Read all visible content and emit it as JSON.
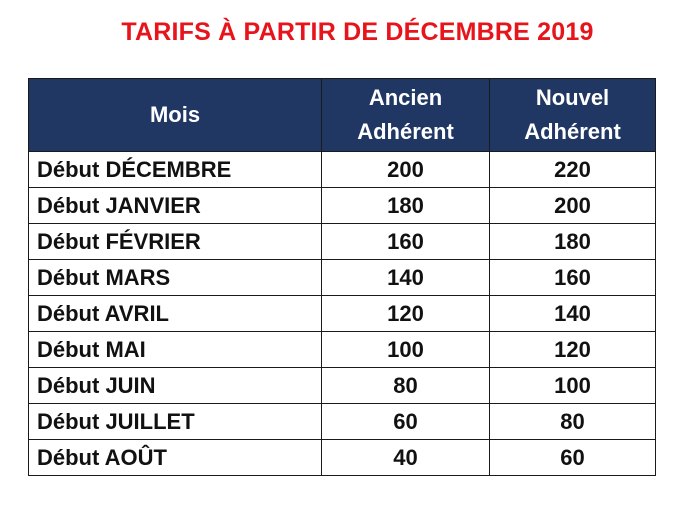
{
  "title": "TARIFS À PARTIR DE DÉCEMBRE 2019",
  "table": {
    "headers": [
      "Mois",
      "Ancien Adhérent",
      "Nouvel Adhérent"
    ],
    "header_lines": {
      "ancien": [
        "Ancien",
        "Adhérent"
      ],
      "nouvel": [
        "Nouvel",
        "Adhérent"
      ]
    },
    "rows": [
      {
        "month": "Début DÉCEMBRE",
        "ancien": "200",
        "nouvel": "220"
      },
      {
        "month": "Début JANVIER",
        "ancien": "180",
        "nouvel": "200"
      },
      {
        "month": "Début FÉVRIER",
        "ancien": "160",
        "nouvel": "180"
      },
      {
        "month": "Début MARS",
        "ancien": "140",
        "nouvel": "160"
      },
      {
        "month": "Début AVRIL",
        "ancien": "120",
        "nouvel": "140"
      },
      {
        "month": "Début MAI",
        "ancien": "100",
        "nouvel": "120"
      },
      {
        "month": "Début JUIN",
        "ancien": "80",
        "nouvel": "100"
      },
      {
        "month": "Début JUILLET",
        "ancien": "60",
        "nouvel": "80"
      },
      {
        "month": "Début AOÛT",
        "ancien": "40",
        "nouvel": "60"
      }
    ]
  },
  "colors": {
    "title": "#e8141b",
    "header_bg": "#203764",
    "header_text": "#ffffff",
    "border": "#1a1a1a"
  }
}
